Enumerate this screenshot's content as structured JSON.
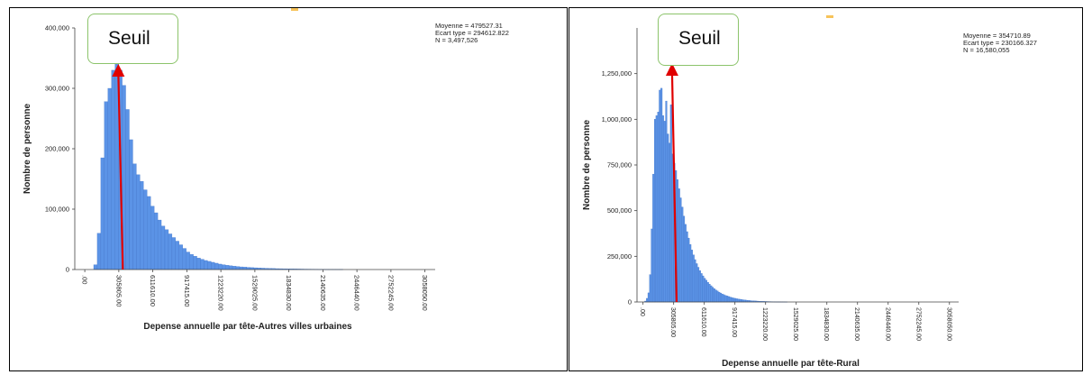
{
  "colors": {
    "bar": "#5b93e6",
    "bar_edge": "#3f73c8",
    "threshold_line": "#e00000",
    "callout_border": "#8cc46b"
  },
  "chart_data": [
    {
      "type": "bar",
      "title": "",
      "xlabel": "Depense annuelle par tête-Autres villes urbaines",
      "ylabel": "Nombre de personne",
      "xlim": [
        -90000,
        3150000
      ],
      "ylim": [
        0,
        400000
      ],
      "yticks": [
        0,
        100000,
        200000,
        300000,
        400000
      ],
      "ytick_labels": [
        "0",
        "100,000",
        "200,000",
        "300,000",
        "400,000"
      ],
      "xticks": [
        0,
        305805,
        611610,
        917415,
        1223220,
        1529025,
        1834830,
        2140635,
        2446440,
        2752245,
        3058050
      ],
      "xtick_labels": [
        ".00",
        "305805.00",
        "611610.00",
        "917415.00",
        "1223220.00",
        "1529025.00",
        "1834830.00",
        "2140635.00",
        "2446440.00",
        "2752245.00",
        "3058050.00"
      ],
      "bin_start": 80000,
      "bin_width": 32000,
      "values": [
        8000,
        60000,
        185000,
        278000,
        300000,
        330000,
        340000,
        330000,
        305000,
        265000,
        215000,
        175000,
        157000,
        146000,
        132000,
        121000,
        105000,
        94000,
        82000,
        72000,
        66000,
        59000,
        53000,
        47000,
        41000,
        35000,
        29000,
        25000,
        22000,
        19000,
        17000,
        15000,
        13500,
        12000,
        10500,
        9000,
        8000,
        7000,
        6200,
        5500,
        5000,
        4400,
        4000,
        3600,
        3200,
        2900,
        2600,
        2300,
        2100,
        1900,
        1700,
        1500,
        1400,
        1300,
        1200,
        1100,
        1000,
        900,
        800,
        700,
        650,
        600,
        550,
        500,
        450,
        400,
        380,
        360,
        340,
        320
      ],
      "stats": [
        "Moyenne = 479527.31",
        "Ecart type = 294612.822",
        "N = 3,497,526"
      ],
      "threshold_x": 342000,
      "threshold_label": "Seuil"
    },
    {
      "type": "bar",
      "title": "",
      "xlabel": "Depense annuelle par tête-Rural",
      "ylabel": "Nombre de personne",
      "xlim": [
        -60000,
        3150000
      ],
      "ylim": [
        0,
        1500000
      ],
      "yticks": [
        0,
        250000,
        500000,
        750000,
        1000000,
        1250000
      ],
      "ytick_labels": [
        "0",
        "250,000",
        "500,000",
        "750,000",
        "1,000,000",
        "1,250,000"
      ],
      "xticks": [
        0,
        305805,
        611610,
        917415,
        1223220,
        1529025,
        1834830,
        2140635,
        2446440,
        2752245,
        3058050
      ],
      "xtick_labels": [
        ".00",
        "305805.00",
        "611610.00",
        "917415.00",
        "1223220.00",
        "1529025.00",
        "1834830.00",
        "2140635.00",
        "2446440.00",
        "2752245.00",
        "3058050.00"
      ],
      "bin_start": 0,
      "bin_width": 16000,
      "values": [
        0,
        5000,
        20000,
        50000,
        150000,
        400000,
        700000,
        1000000,
        1020000,
        1040000,
        1160000,
        1170000,
        1020000,
        990000,
        1100000,
        920000,
        870000,
        1080000,
        810000,
        760000,
        720000,
        670000,
        620000,
        570000,
        520000,
        470000,
        425000,
        385000,
        350000,
        315000,
        285000,
        258000,
        232000,
        210000,
        190000,
        172000,
        156000,
        143000,
        130000,
        119000,
        108000,
        98000,
        89000,
        81000,
        73000,
        66000,
        60000,
        54000,
        49000,
        44000,
        40000,
        36000,
        33000,
        30000,
        27000,
        24500,
        22000,
        20000,
        18000,
        16500,
        15000,
        13500,
        12000,
        11000,
        10000,
        9000,
        8000,
        7000,
        6500,
        6000,
        5400,
        4800,
        4300,
        3900,
        3500,
        3100,
        2800,
        2500,
        2200,
        2000,
        1800,
        1600,
        1400,
        1200,
        1000,
        900,
        800,
        700,
        600,
        500
      ],
      "stats": [
        "Moyenne = 354710.89",
        "Ecart type = 230166.327",
        "N = 16,580,055"
      ],
      "threshold_x": 335000,
      "threshold_label": "Seuil"
    }
  ]
}
